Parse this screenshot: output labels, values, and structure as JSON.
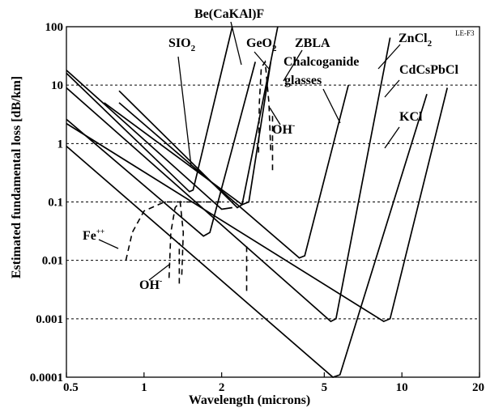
{
  "chart_data": {
    "type": "line",
    "title": "",
    "corner_label": "LE-F3",
    "xlabel": "Wavelength (microns)",
    "ylabel": "Estimated fundamental loss [dB/km]",
    "x_scale": "log",
    "y_scale": "log",
    "xlim": [
      0.5,
      20
    ],
    "ylim": [
      0.0001,
      100
    ],
    "x_ticks": [
      {
        "value": 0.5,
        "label": "0.5"
      },
      {
        "value": 1,
        "label": "1"
      },
      {
        "value": 2,
        "label": "2"
      },
      {
        "value": 5,
        "label": "5"
      },
      {
        "value": 10,
        "label": "10"
      },
      {
        "value": 20,
        "label": "20"
      }
    ],
    "y_ticks": [
      {
        "value": 0.0001,
        "label": "0.0001"
      },
      {
        "value": 0.001,
        "label": "0.001"
      },
      {
        "value": 0.01,
        "label": "0.01"
      },
      {
        "value": 0.1,
        "label": "0.1"
      },
      {
        "value": 1,
        "label": "1"
      },
      {
        "value": 10,
        "label": "10"
      },
      {
        "value": 100,
        "label": "100"
      }
    ],
    "grid": "horizontal dashed",
    "series": [
      {
        "name": "SiO2",
        "label_main": "SIO",
        "label_sub": "2",
        "points": [
          [
            0.5,
            16
          ],
          [
            1.5,
            0.15
          ],
          [
            1.55,
            0.16
          ],
          [
            2.2,
            100
          ]
        ]
      },
      {
        "name": "Be(CaKAl)F",
        "points": [
          [
            0.8,
            8
          ],
          [
            2.3,
            0.08
          ],
          [
            2.4,
            0.09
          ],
          [
            3.3,
            100
          ]
        ]
      },
      {
        "name": "GeO2",
        "label_main": "GeO",
        "label_sub": "2",
        "points": [
          [
            0.5,
            2.6
          ],
          [
            1.7,
            0.026
          ],
          [
            1.8,
            0.03
          ],
          [
            2.7,
            25
          ]
        ]
      },
      {
        "name": "ZBLA",
        "points": [
          [
            0.7,
            5
          ],
          [
            2.4,
            0.09
          ],
          [
            2.55,
            0.1
          ],
          [
            3.1,
            25
          ]
        ]
      },
      {
        "name": "Chalcoganide glasses",
        "label_lines": [
          "Chalcoganide",
          "glasses"
        ],
        "points": [
          [
            0.8,
            5
          ],
          [
            4.0,
            0.011
          ],
          [
            4.2,
            0.012
          ],
          [
            6.2,
            10
          ]
        ]
      },
      {
        "name": "ZnCl2",
        "label_main": "ZnCl",
        "label_sub": "2",
        "points": [
          [
            0.5,
            9
          ],
          [
            5.3,
            0.0009
          ],
          [
            5.55,
            0.001
          ],
          [
            9.0,
            65
          ]
        ]
      },
      {
        "name": "KCl",
        "points": [
          [
            0.5,
            0.9
          ],
          [
            5.4,
            0.0001
          ],
          [
            5.75,
            0.00011
          ],
          [
            12.5,
            7
          ]
        ]
      },
      {
        "name": "CdCsPbCl",
        "points": [
          [
            0.5,
            2.2
          ],
          [
            8.5,
            0.0009
          ],
          [
            9.0,
            0.001
          ],
          [
            15,
            9
          ]
        ]
      },
      {
        "name": "SiO2 (lower branch)",
        "points": [
          [
            0.5,
            18
          ],
          [
            2.0,
            0.075
          ],
          [
            2.2,
            0.08
          ]
        ]
      }
    ],
    "absorption_bands": [
      {
        "name": "Fe++",
        "label_main": "Fe",
        "label_sup": "++",
        "points": [
          [
            0.85,
            0.01
          ],
          [
            0.9,
            0.03
          ],
          [
            1.0,
            0.07
          ],
          [
            1.2,
            0.1
          ],
          [
            1.5,
            0.1
          ],
          [
            2.0,
            0.1
          ]
        ]
      },
      {
        "name": "OH- (lower)",
        "label_main": "OH",
        "label_sup": "-",
        "points": [
          [
            1.25,
            0.005
          ],
          [
            1.27,
            0.03
          ],
          [
            1.32,
            0.08
          ],
          [
            1.38,
            0.1
          ],
          [
            1.42,
            0.03
          ],
          [
            1.4,
            0.005
          ]
        ]
      },
      {
        "name": "OH- (upper)",
        "label_main": "OH",
        "label_sup": "-",
        "points": [
          [
            2.78,
            0.7
          ],
          [
            2.8,
            5
          ],
          [
            2.85,
            20
          ],
          [
            2.95,
            25
          ],
          [
            3.05,
            5
          ],
          [
            3.1,
            0.7
          ]
        ]
      }
    ]
  }
}
